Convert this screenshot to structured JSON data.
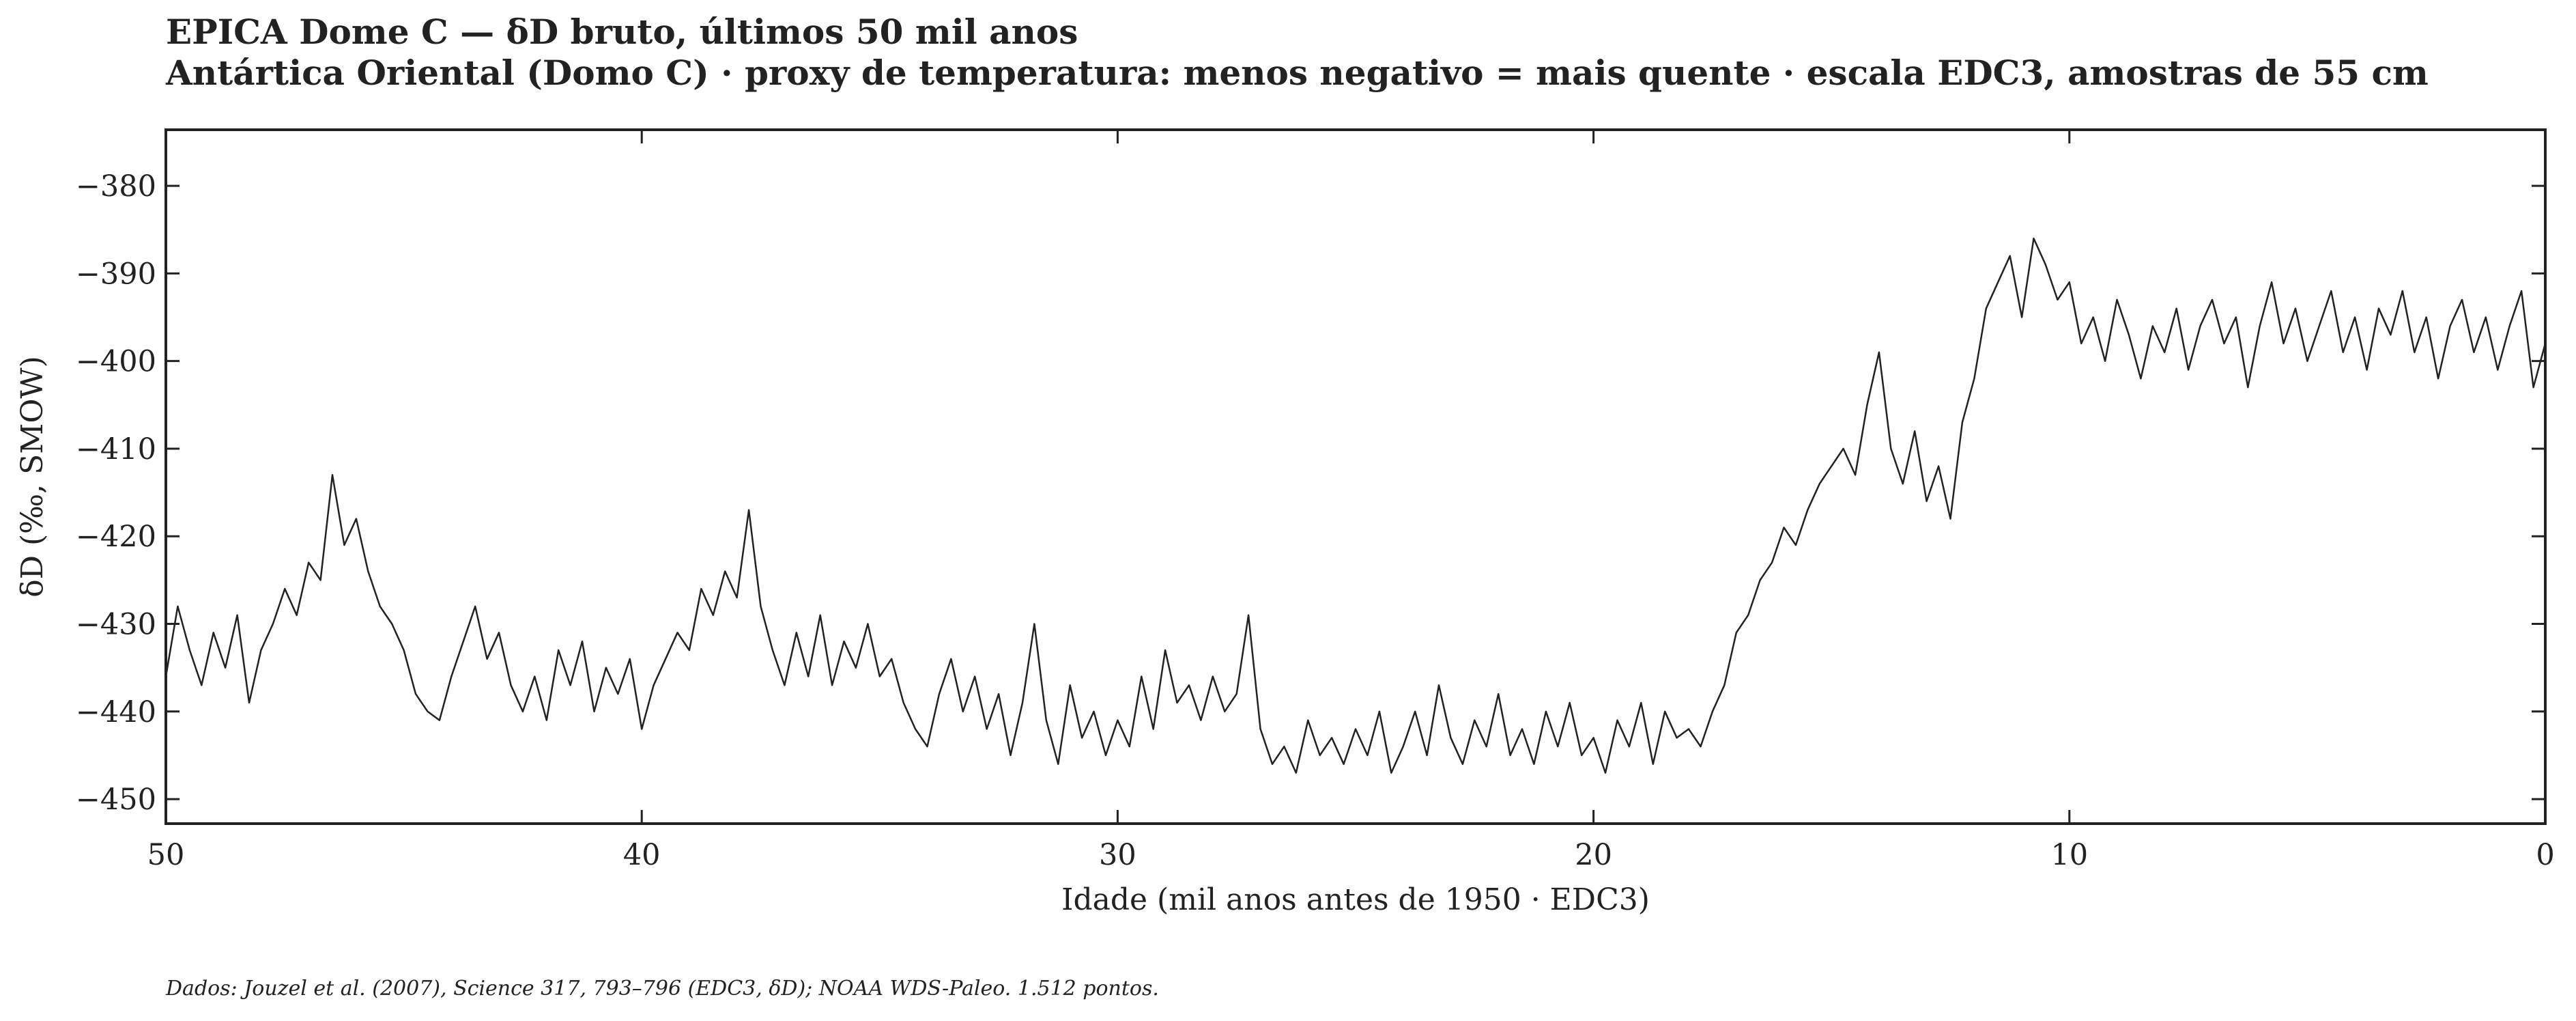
{
  "chart_data": {
    "type": "line",
    "title": "EPICA Dome C — δD bruto, últimos 50 mil anos",
    "subtitle": "Antártica Oriental (Domo C) · proxy de temperatura: menos negativo = mais quente · escala EDC3, amostras de 55 cm",
    "xlabel": "Idade (mil anos antes de 1950 · EDC3)",
    "ylabel": "δD (‰, SMOW)",
    "footnote": "Dados: Jouzel et al. (2007), Science 317, 793–796 (EDC3, δD); NOAA WDS-Paleo. 1.512 pontos.",
    "xlim": [
      50,
      0
    ],
    "xticks": [
      50,
      40,
      30,
      20,
      10,
      0
    ],
    "ylim": [
      -452.8,
      -373.6
    ],
    "yticks": [
      {
        "value": -380,
        "label": "−380"
      },
      {
        "value": -390,
        "label": "−390"
      },
      {
        "value": -400,
        "label": "−400"
      },
      {
        "value": -410,
        "label": "−410"
      },
      {
        "value": -420,
        "label": "−420"
      },
      {
        "value": -430,
        "label": "−430"
      },
      {
        "value": -440,
        "label": "−440"
      },
      {
        "value": -450,
        "label": "−450"
      }
    ],
    "grid": false,
    "x": [
      50,
      49.75,
      49.5,
      49.25,
      49,
      48.75,
      48.5,
      48.25,
      48,
      47.75,
      47.5,
      47.25,
      47,
      46.75,
      46.5,
      46.25,
      46,
      45.75,
      45.5,
      45.25,
      45,
      44.75,
      44.5,
      44.25,
      44,
      43.75,
      43.5,
      43.25,
      43,
      42.75,
      42.5,
      42.25,
      42,
      41.75,
      41.5,
      41.25,
      41,
      40.75,
      40.5,
      40.25,
      40,
      39.75,
      39.5,
      39.25,
      39,
      38.75,
      38.5,
      38.25,
      38,
      37.75,
      37.5,
      37.25,
      37,
      36.75,
      36.5,
      36.25,
      36,
      35.75,
      35.5,
      35.25,
      35,
      34.75,
      34.5,
      34.25,
      34,
      33.75,
      33.5,
      33.25,
      33,
      32.75,
      32.5,
      32.25,
      32,
      31.75,
      31.5,
      31.25,
      31,
      30.75,
      30.5,
      30.25,
      30,
      29.75,
      29.5,
      29.25,
      29,
      28.75,
      28.5,
      28.25,
      28,
      27.75,
      27.5,
      27.25,
      27,
      26.75,
      26.5,
      26.25,
      26,
      25.75,
      25.5,
      25.25,
      25,
      24.75,
      24.5,
      24.25,
      24,
      23.75,
      23.5,
      23.25,
      23,
      22.75,
      22.5,
      22.25,
      22,
      21.75,
      21.5,
      21.25,
      21,
      20.75,
      20.5,
      20.25,
      20,
      19.75,
      19.5,
      19.25,
      19,
      18.75,
      18.5,
      18.25,
      18,
      17.75,
      17.5,
      17.25,
      17,
      16.75,
      16.5,
      16.25,
      16,
      15.75,
      15.5,
      15.25,
      15,
      14.75,
      14.5,
      14.25,
      14,
      13.75,
      13.5,
      13.25,
      13,
      12.75,
      12.5,
      12.25,
      12,
      11.75,
      11.5,
      11.25,
      11,
      10.75,
      10.5,
      10.25,
      10,
      9.75,
      9.5,
      9.25,
      9,
      8.75,
      8.5,
      8.25,
      8,
      7.75,
      7.5,
      7.25,
      7,
      6.75,
      6.5,
      6.25,
      6,
      5.75,
      5.5,
      5.25,
      5,
      4.75,
      4.5,
      4.25,
      4,
      3.75,
      3.5,
      3.25,
      3,
      2.75,
      2.5,
      2.25,
      2,
      1.75,
      1.5,
      1.25,
      1,
      0.75,
      0.5,
      0.25,
      0
    ],
    "series": [
      {
        "color": "#222222",
        "values": [
          -436,
          -428,
          -433,
          -437,
          -431,
          -435,
          -429,
          -439,
          -433,
          -430,
          -426,
          -429,
          -423,
          -425,
          -413,
          -421,
          -418,
          -424,
          -428,
          -430,
          -433,
          -438,
          -440,
          -441,
          -436,
          -432,
          -428,
          -434,
          -431,
          -437,
          -440,
          -436,
          -441,
          -433,
          -437,
          -432,
          -440,
          -435,
          -438,
          -434,
          -442,
          -437,
          -434,
          -431,
          -433,
          -426,
          -429,
          -424,
          -427,
          -417,
          -428,
          -433,
          -437,
          -431,
          -436,
          -429,
          -437,
          -432,
          -435,
          -430,
          -436,
          -434,
          -439,
          -442,
          -444,
          -438,
          -434,
          -440,
          -436,
          -442,
          -438,
          -445,
          -439,
          -430,
          -441,
          -446,
          -437,
          -443,
          -440,
          -445,
          -441,
          -444,
          -436,
          -442,
          -433,
          -439,
          -437,
          -441,
          -436,
          -440,
          -438,
          -429,
          -442,
          -446,
          -444,
          -447,
          -441,
          -445,
          -443,
          -446,
          -442,
          -445,
          -440,
          -447,
          -444,
          -440,
          -445,
          -437,
          -443,
          -446,
          -441,
          -444,
          -438,
          -445,
          -442,
          -446,
          -440,
          -444,
          -439,
          -445,
          -443,
          -447,
          -441,
          -444,
          -439,
          -446,
          -440,
          -443,
          -442,
          -444,
          -440,
          -437,
          -431,
          -429,
          -425,
          -423,
          -419,
          -421,
          -417,
          -414,
          -412,
          -410,
          -413,
          -405,
          -399,
          -410,
          -414,
          -408,
          -416,
          -412,
          -418,
          -407,
          -402,
          -394,
          -391,
          -388,
          -395,
          -386,
          -389,
          -393,
          -391,
          -398,
          -395,
          -400,
          -393,
          -397,
          -402,
          -396,
          -399,
          -394,
          -401,
          -396,
          -393,
          -398,
          -395,
          -403,
          -396,
          -391,
          -398,
          -394,
          -400,
          -396,
          -392,
          -399,
          -395,
          -401,
          -394,
          -397,
          -392,
          -399,
          -395,
          -402,
          -396,
          -393,
          -399,
          -395,
          -401,
          -396,
          -392,
          -403,
          -398
        ]
      }
    ]
  }
}
